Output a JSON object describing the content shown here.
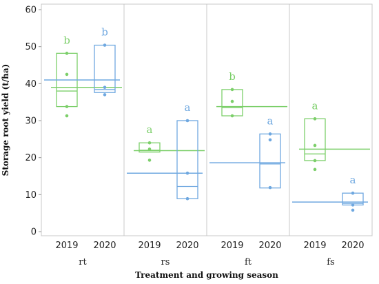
{
  "chart_data": {
    "type": "box",
    "xlabel": "Treatment and growing season",
    "ylabel": "Storage root yield (t/ha)",
    "ylim": [
      0,
      60
    ],
    "yticks": [
      "0",
      "10",
      "20",
      "30",
      "40",
      "50",
      "60"
    ],
    "grid": "panel dividers",
    "colors": {
      "2019": "#7ccf6a",
      "2020": "#6fa8e0"
    },
    "groups": [
      {
        "name": "rt",
        "boxes": [
          {
            "season": "2019",
            "q1": 33.8,
            "median": 38.0,
            "q3": 48.2,
            "points": [
              48.2,
              42.5,
              33.8,
              31.3
            ],
            "letter": "b",
            "group_mean": 39.0
          },
          {
            "season": "2020",
            "q1": 37.6,
            "median": 38.4,
            "q3": 50.4,
            "points": [
              50.4,
              39.0,
              37.0
            ],
            "letter": "b",
            "group_mean": 41.0
          }
        ]
      },
      {
        "name": "rs",
        "boxes": [
          {
            "season": "2019",
            "q1": 21.5,
            "median": 22.0,
            "q3": 24.0,
            "points": [
              24.0,
              22.3,
              19.3
            ],
            "letter": "a",
            "group_mean": 21.9
          },
          {
            "season": "2020",
            "q1": 8.9,
            "median": 12.2,
            "q3": 30.0,
            "points": [
              30.0,
              15.8,
              8.9
            ],
            "letter": "a",
            "group_mean": 15.8
          }
        ]
      },
      {
        "name": "ft",
        "boxes": [
          {
            "season": "2019",
            "q1": 31.3,
            "median": 33.5,
            "q3": 38.4,
            "points": [
              38.4,
              35.2,
              31.3
            ],
            "letter": "b",
            "group_mean": 33.8
          },
          {
            "season": "2020",
            "q1": 11.8,
            "median": 18.3,
            "q3": 26.4,
            "points": [
              26.4,
              24.8,
              11.9
            ],
            "letter": "a",
            "group_mean": 18.6
          }
        ]
      },
      {
        "name": "fs",
        "boxes": [
          {
            "season": "2019",
            "q1": 19.2,
            "median": 21.0,
            "q3": 30.5,
            "points": [
              30.5,
              23.3,
              19.2,
              16.8
            ],
            "letter": "a",
            "group_mean": 22.3
          },
          {
            "season": "2020",
            "q1": 7.2,
            "median": 7.6,
            "q3": 10.4,
            "points": [
              10.4,
              7.2,
              5.8
            ],
            "letter": "a",
            "group_mean": 8.0
          }
        ]
      }
    ]
  }
}
